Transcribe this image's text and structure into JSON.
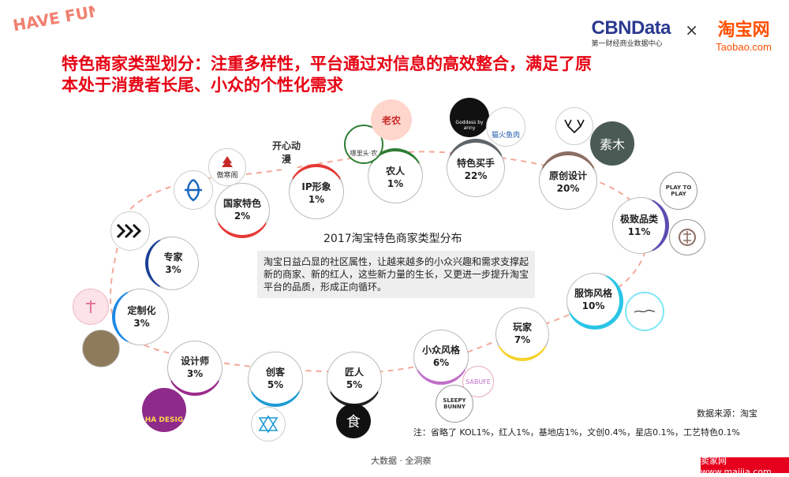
{
  "header": {
    "have_fun": "HAVE FUN!",
    "cbn_logo": "CBNData",
    "cbn_sub": "第一财经商业数据中心",
    "times": "×",
    "taobao_logo": "淘宝网",
    "taobao_sub": "Taobao.com"
  },
  "title_line1": "特色商家类型划分：注重多样性，平台通过对信息的高效整合，满足了原",
  "title_line2": "本处于消费者长尾、小众的个性化需求",
  "center": {
    "title": "2017淘宝特色商家类型分布",
    "desc": "淘宝日益凸显的社区属性，让越来越多的小众兴趣和需求支撑起新的商家、新的红人，这些新力量的生长，又更进一步提升淘宝平台的品质，形成正向循环。"
  },
  "categories": [
    {
      "name": "专家",
      "pct": "3%",
      "color": "#1a3f95"
    },
    {
      "name": "国家特色",
      "pct": "2%",
      "color": "#e53935"
    },
    {
      "name": "IP形象",
      "pct": "1%",
      "color": "#e53935"
    },
    {
      "name": "农人",
      "pct": "1%",
      "color": "#2e7d32"
    },
    {
      "name": "特色买手",
      "pct": "22%",
      "color": "#5f6468"
    },
    {
      "name": "原创设计",
      "pct": "20%",
      "color": "#8d6e63"
    },
    {
      "name": "极致品类",
      "pct": "11%",
      "color": "#5c4db1"
    },
    {
      "name": "服饰风格",
      "pct": "10%",
      "color": "#29c5e6"
    },
    {
      "name": "玩家",
      "pct": "7%",
      "color": "#f5d22b"
    },
    {
      "name": "小众风格",
      "pct": "6%",
      "color": "#c06fc9"
    },
    {
      "name": "匠人",
      "pct": "5%",
      "color": "#222222"
    },
    {
      "name": "创客",
      "pct": "5%",
      "color": "#1e9ad6"
    },
    {
      "name": "设计师",
      "pct": "3%",
      "color": "#9c2c8c"
    },
    {
      "name": "定制化",
      "pct": "3%",
      "color": "#1e88e5"
    }
  ],
  "logos": {
    "expert": "",
    "national": "傲寒阁",
    "ip": "开心动漫",
    "farmer1": "哪里头·农",
    "farmer2": "老农",
    "buyer1": "Goddess by anny",
    "buyer2": "猫火鱼肉",
    "design1": "",
    "design2": "素木",
    "category1": "PLAY TO PLAY",
    "category2": "",
    "fashion": "",
    "niche1": "SABUFE",
    "niche2": "SLEEPY BUNNY",
    "craft": "食",
    "maker": "",
    "designer": "HA DESIG",
    "custom1": "",
    "custom2": ""
  },
  "source": "数据来源：淘宝",
  "note": "注：省略了 KOL1%，红人1%，基地店1%，文创0.4%，星店0.1%，工艺特色0.1%",
  "footer": "大数据 · 全洞察",
  "watermark": "卖家网 www.maijia.com",
  "colors": {
    "accent": "#e60012",
    "curve": "#f4a99a",
    "taobao": "#ff5000",
    "cbn": "#2b3990"
  }
}
